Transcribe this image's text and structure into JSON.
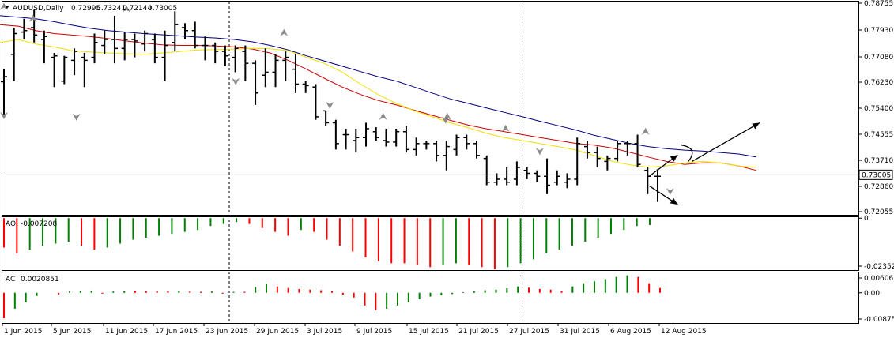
{
  "chart_data": {
    "type": "ohlc",
    "symbol_label": "AUDUSD,Daily",
    "header_values": [
      "0.72995",
      "0.73241",
      "0.72144",
      "0.73005"
    ],
    "colors": {
      "bars": "#000000",
      "ma_fast": "#f2e000",
      "ma_mid": "#cc0000",
      "ma_slow": "#00007f",
      "ao_up": "#008000",
      "ao_down": "#ff0000",
      "fractal": "#8c8c8c",
      "price_line": "#c0c0c0"
    },
    "main": {
      "ylim": [
        0.71705,
        0.78875
      ],
      "y_ticks": [
        "0.78755",
        "0.77930",
        "0.77080",
        "0.76230",
        "0.75400",
        "0.74555",
        "0.73710",
        "0.72860",
        "0.72055"
      ],
      "current_price": "0.73005",
      "bars": [
        [
          0.7618,
          0.766,
          0.75,
          0.7635
        ],
        [
          0.771,
          0.78,
          0.762,
          0.778
        ],
        [
          0.7785,
          0.783,
          0.776,
          0.779
        ],
        [
          0.78,
          0.786,
          0.775,
          0.7775
        ],
        [
          0.776,
          0.779,
          0.768,
          0.777
        ],
        [
          0.77,
          0.7715,
          0.76,
          0.7705
        ],
        [
          0.762,
          0.7705,
          0.761,
          0.77
        ],
        [
          0.769,
          0.773,
          0.764,
          0.772
        ],
        [
          0.77,
          0.7715,
          0.76,
          0.769
        ],
        [
          0.77,
          0.778,
          0.768,
          0.775
        ],
        [
          0.774,
          0.779,
          0.771,
          0.776
        ],
        [
          0.776,
          0.784,
          0.768,
          0.773
        ],
        [
          0.773,
          0.7785,
          0.769,
          0.776
        ],
        [
          0.776,
          0.778,
          0.77,
          0.7755
        ],
        [
          0.7745,
          0.779,
          0.772,
          0.778
        ],
        [
          0.776,
          0.778,
          0.768,
          0.77
        ],
        [
          0.77,
          0.779,
          0.762,
          0.774
        ],
        [
          0.775,
          0.7855,
          0.772,
          0.781
        ],
        [
          0.78,
          0.7815,
          0.776,
          0.779
        ],
        [
          0.779,
          0.782,
          0.773,
          0.774
        ],
        [
          0.774,
          0.777,
          0.769,
          0.774
        ],
        [
          0.774,
          0.775,
          0.768,
          0.772
        ],
        [
          0.772,
          0.774,
          0.767,
          0.7705
        ],
        [
          0.77,
          0.774,
          0.765,
          0.773
        ],
        [
          0.772,
          0.774,
          0.762,
          0.768
        ],
        [
          0.768,
          0.769,
          0.754,
          0.758
        ],
        [
          0.764,
          0.773,
          0.76,
          0.765
        ],
        [
          0.765,
          0.771,
          0.76,
          0.769
        ],
        [
          0.769,
          0.772,
          0.762,
          0.77
        ],
        [
          0.766,
          0.771,
          0.758,
          0.761
        ],
        [
          0.761,
          0.762,
          0.758,
          0.7605
        ],
        [
          0.76,
          0.761,
          0.749,
          0.75
        ],
        [
          0.752,
          0.752,
          0.747,
          0.748
        ],
        [
          0.748,
          0.749,
          0.739,
          0.741
        ],
        [
          0.744,
          0.746,
          0.739,
          0.744
        ],
        [
          0.742,
          0.746,
          0.738,
          0.743
        ],
        [
          0.743,
          0.748,
          0.74,
          0.746
        ],
        [
          0.745,
          0.7465,
          0.742,
          0.743
        ],
        [
          0.742,
          0.746,
          0.74,
          0.7415
        ],
        [
          0.7415,
          0.746,
          0.74,
          0.745
        ],
        [
          0.745,
          0.747,
          0.738,
          0.739
        ],
        [
          0.739,
          0.743,
          0.737,
          0.741
        ],
        [
          0.741,
          0.742,
          0.739,
          0.741
        ],
        [
          0.741,
          0.742,
          0.735,
          0.737
        ],
        [
          0.737,
          0.742,
          0.732,
          0.74
        ],
        [
          0.739,
          0.744,
          0.737,
          0.743
        ],
        [
          0.743,
          0.744,
          0.739,
          0.741
        ],
        [
          0.741,
          0.742,
          0.736,
          0.737
        ],
        [
          0.736,
          0.737,
          0.727,
          0.728
        ],
        [
          0.728,
          0.731,
          0.727,
          0.729
        ],
        [
          0.729,
          0.733,
          0.727,
          0.728
        ],
        [
          0.729,
          0.735,
          0.727,
          0.733
        ],
        [
          0.732,
          0.733,
          0.729,
          0.731
        ],
        [
          0.731,
          0.732,
          0.728,
          0.73
        ],
        [
          0.73,
          0.736,
          0.724,
          0.727
        ],
        [
          0.728,
          0.732,
          0.727,
          0.73
        ],
        [
          0.728,
          0.731,
          0.726,
          0.729
        ],
        [
          0.729,
          0.743,
          0.727,
          0.741
        ],
        [
          0.74,
          0.742,
          0.736,
          0.738
        ],
        [
          0.738,
          0.74,
          0.733,
          0.736
        ],
        [
          0.735,
          0.737,
          0.732,
          0.736
        ],
        [
          0.736,
          0.742,
          0.735,
          0.741
        ],
        [
          0.741,
          0.742,
          0.737,
          0.741
        ],
        [
          0.741,
          0.744,
          0.733,
          0.734
        ],
        [
          0.732,
          0.733,
          0.724,
          0.73
        ],
        [
          0.73,
          0.7324,
          0.7214,
          0.73
        ]
      ],
      "fractals_up": [
        [
          0,
          0.787
        ],
        [
          5,
          0.783
        ],
        [
          21,
          0.7862
        ],
        [
          48,
          0.7782
        ],
        [
          65,
          0.75
        ],
        [
          76,
          0.75
        ],
        [
          86,
          0.746
        ],
        [
          110,
          0.745
        ]
      ],
      "fractals_down": [
        [
          0,
          0.7505
        ],
        [
          10,
          0.75
        ],
        [
          32,
          0.762
        ],
        [
          45,
          0.754
        ],
        [
          61,
          0.749
        ],
        [
          74,
          0.7385
        ],
        [
          92,
          0.725
        ]
      ],
      "ma_fast": [
        0.775,
        0.776,
        0.7745,
        0.7735,
        0.7722,
        0.7718,
        0.7715,
        0.7712,
        0.771,
        0.7715,
        0.772,
        0.7725,
        0.7726,
        0.7728,
        0.773,
        0.7729,
        0.7722,
        0.77,
        0.768,
        0.765,
        0.761,
        0.7575,
        0.7545,
        0.752,
        0.75,
        0.748,
        0.7463,
        0.7445,
        0.743,
        0.742,
        0.741,
        0.74,
        0.7388,
        0.737,
        0.735,
        0.7338,
        0.733,
        0.7335,
        0.7345,
        0.735,
        0.7345,
        0.7335,
        0.733
      ],
      "ma_mid": [
        0.781,
        0.7805,
        0.779,
        0.778,
        0.7775,
        0.777,
        0.7763,
        0.7755,
        0.7748,
        0.7742,
        0.774,
        0.774,
        0.7738,
        0.7735,
        0.7728,
        0.7715,
        0.769,
        0.766,
        0.763,
        0.76,
        0.7575,
        0.7555,
        0.754,
        0.7522,
        0.7505,
        0.7488,
        0.7472,
        0.746,
        0.745,
        0.744,
        0.743,
        0.742,
        0.741,
        0.7405,
        0.7395,
        0.738,
        0.7365,
        0.735,
        0.734,
        0.7345,
        0.7345,
        0.7335,
        0.732
      ],
      "ma_slow": [
        0.784,
        0.7835,
        0.783,
        0.782,
        0.7808,
        0.7798,
        0.779,
        0.7785,
        0.778,
        0.7776,
        0.7772,
        0.7768,
        0.7765,
        0.776,
        0.7752,
        0.774,
        0.7725,
        0.7705,
        0.7688,
        0.767,
        0.7652,
        0.7635,
        0.762,
        0.76,
        0.758,
        0.756,
        0.7545,
        0.753,
        0.7515,
        0.75,
        0.7485,
        0.747,
        0.7455,
        0.7438,
        0.7424,
        0.741,
        0.74,
        0.7393,
        0.7388,
        0.7385,
        0.738,
        0.7375,
        0.7365
      ],
      "current_line": [
        [
          -0.5,
          0.7305
        ],
        [
          95.2,
          0.7305
        ]
      ],
      "ma_fast_x": [
        -0.5,
        1.8,
        4,
        6.3,
        8.6,
        10.8,
        13.1,
        15.4,
        17.6,
        19.9,
        22.2,
        24.4,
        26.7,
        29,
        31.3,
        33.5,
        35.8,
        38.1,
        40.3,
        42.6,
        44.9,
        47.1,
        49.4,
        51.7,
        53.9,
        56.2,
        58.5,
        60.7,
        63,
        65.3,
        67.5,
        69.8,
        72.1,
        74.3,
        76.6,
        78.9,
        81.1,
        83.4,
        85.7,
        87.9,
        90.2,
        92.5,
        94.7
      ],
      "arrows": [
        {
          "from": [
            90.5,
            0.73
          ],
          "to": [
            94.5,
            0.7372
          ]
        },
        {
          "from": [
            90.5,
            0.7268
          ],
          "to": [
            94.5,
            0.7205
          ]
        },
        {
          "from": [
            96.5,
            0.735
          ],
          "to": [
            106,
            0.748
          ]
        }
      ],
      "curl": [
        [
          95,
          0.7405
        ],
        [
          97,
          0.7395
        ],
        [
          96,
          0.735
        ]
      ]
    },
    "ao": {
      "label": "AO",
      "value": "-0.007208",
      "y_ticks": [
        "0",
        "-0.02352"
      ],
      "ylim": [
        -0.0265,
        0.0005
      ],
      "values": [
        -0.015,
        -0.018,
        -0.016,
        -0.014,
        -0.013,
        -0.012,
        -0.014,
        -0.016,
        -0.015,
        -0.013,
        -0.011,
        -0.01,
        -0.009,
        -0.008,
        -0.007,
        -0.006,
        -0.004,
        -0.003,
        -0.002,
        -0.003,
        -0.005,
        -0.007,
        -0.009,
        -0.006,
        -0.007,
        -0.011,
        -0.014,
        -0.017,
        -0.02,
        -0.022,
        -0.023,
        -0.023,
        -0.024,
        -0.025,
        -0.024,
        -0.023,
        -0.024,
        -0.025,
        -0.026,
        -0.025,
        -0.023,
        -0.021,
        -0.018,
        -0.016,
        -0.014,
        -0.012,
        -0.01,
        -0.008,
        -0.006,
        -0.004,
        -0.0035
      ]
    },
    "ac": {
      "label": "AC",
      "value": "0.0020851",
      "y_ticks": [
        "0.0060624",
        "0.00",
        "-0.008759"
      ],
      "ylim": [
        -0.0095,
        0.0064
      ],
      "values": [
        -0.008,
        -0.005,
        -0.003,
        -0.001,
        0.0,
        -0.0005,
        0.0004,
        0.0006,
        0.0007,
        -0.0003,
        0.0004,
        0.0006,
        0.0006,
        0.0005,
        0.0005,
        0.0005,
        0.0006,
        0.0004,
        0.0003,
        0.0004,
        -0.0003,
        0.0003,
        0.0003,
        0.0018,
        0.0028,
        0.002,
        0.0015,
        0.0012,
        0.001,
        0.0008,
        0.0006,
        -0.0006,
        -0.0015,
        -0.004,
        -0.0055,
        -0.005,
        -0.004,
        -0.003,
        -0.002,
        -0.0012,
        -0.0008,
        -0.0004,
        0.0002,
        0.0005,
        0.0008,
        0.001,
        0.0014,
        0.002,
        0.0016,
        0.0012,
        0.001,
        0.0006,
        0.002,
        0.003,
        0.0036,
        0.0043,
        0.005,
        0.0055,
        0.005,
        0.003,
        0.0015
      ]
    },
    "x_labels": [
      "1 Jun 2015",
      "5 Jun 2015",
      "11 Jun 2015",
      "17 Jun 2015",
      "23 Jun 2015",
      "29 Jun 2015",
      "3 Jul 2015",
      "9 Jul 2015",
      "15 Jul 2015",
      "21 Jul 2015",
      "27 Jul 2015",
      "31 Jul 2015",
      "6 Aug 2015",
      "12 Aug 2015"
    ],
    "x_label_index": [
      0,
      4,
      8,
      12,
      16,
      20,
      24,
      28,
      32,
      36,
      40,
      44,
      48,
      52
    ],
    "vertical_separators": [
      20,
      46
    ]
  }
}
